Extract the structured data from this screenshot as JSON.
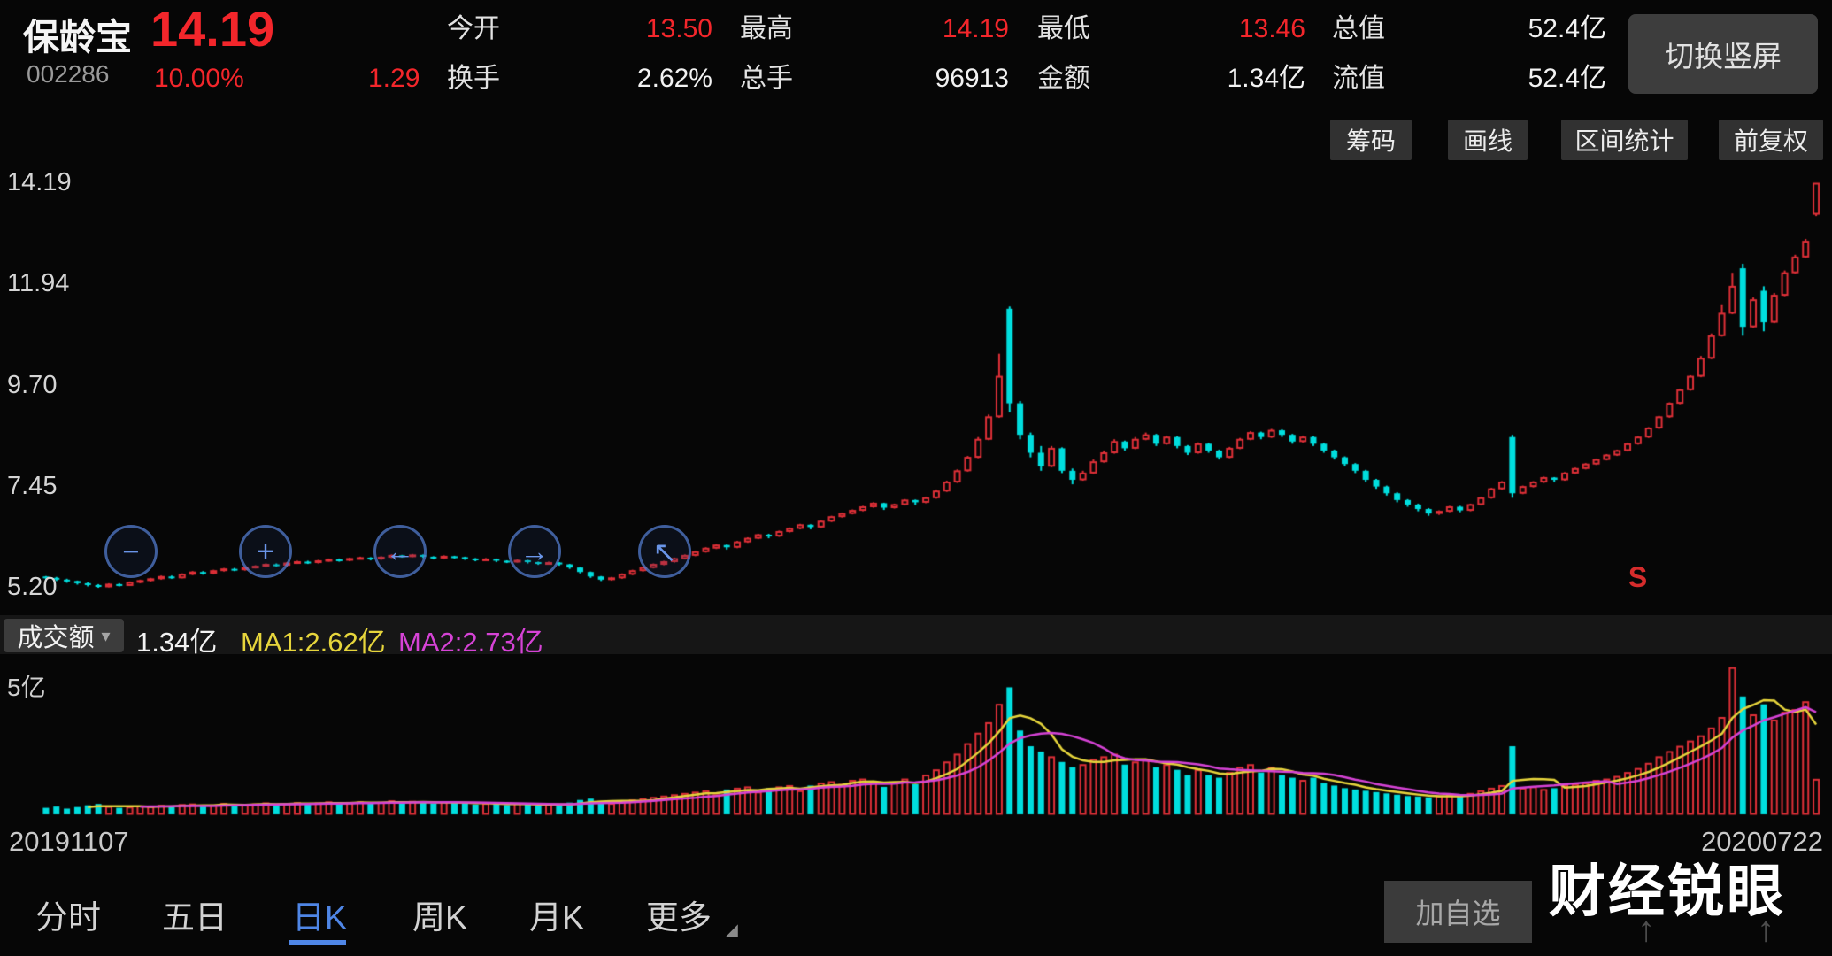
{
  "header": {
    "stock_name": "保龄宝",
    "stock_code": "002286",
    "price": "14.19",
    "change_pct": "10.00%",
    "change_amt": "1.29",
    "stats": [
      {
        "label": "今开",
        "value": "13.50",
        "color": "#f3262b"
      },
      {
        "label": "换手",
        "value": "2.62%",
        "color": "#f2f2f2"
      },
      {
        "label": "最高",
        "value": "14.19",
        "color": "#f3262b"
      },
      {
        "label": "总手",
        "value": "96913",
        "color": "#f2f2f2"
      },
      {
        "label": "最低",
        "value": "13.46",
        "color": "#f3262b"
      },
      {
        "label": "金额",
        "value": "1.34亿",
        "color": "#f2f2f2"
      },
      {
        "label": "总值",
        "value": "52.4亿",
        "color": "#f2f2f2"
      },
      {
        "label": "流值",
        "value": "52.4亿",
        "color": "#f2f2f2"
      }
    ],
    "rotate_button": "切换竖屏"
  },
  "toolbar": {
    "buttons": [
      "筹码",
      "画线",
      "区间统计",
      "前复权"
    ]
  },
  "icons": {
    "zoom_out": "−",
    "zoom_in": "+",
    "pan_left": "←",
    "pan_right": "→",
    "crosshair": "↖",
    "dropdown_caret": "▾",
    "more_caret": "◢",
    "scroll_up": "↑"
  },
  "volume_header": {
    "indicator_label": "成交额",
    "current_value": "1.34亿",
    "ma1": "MA1:2.62亿",
    "ma2": "MA2:2.73亿"
  },
  "tabs": [
    {
      "label": "分时",
      "active": false
    },
    {
      "label": "五日",
      "active": false
    },
    {
      "label": "日K",
      "active": true
    },
    {
      "label": "周K",
      "active": false
    },
    {
      "label": "月K",
      "active": false
    },
    {
      "label": "更多",
      "active": false
    }
  ],
  "add_watchlist_label": "加自选",
  "watermark": "财经锐眼",
  "chart_data": {
    "type": "candlestick_with_volume",
    "title": "保龄宝 002286 日K",
    "price_axis_ticks": [
      "14.19",
      "11.94",
      "9.70",
      "7.45",
      "5.20"
    ],
    "price_range": [
      5.2,
      14.19
    ],
    "x_axis": {
      "start_label": "20191107",
      "end_label": "20200722"
    },
    "volume_axis_tick_label": "5亿",
    "volume_axis_tick_value": 5,
    "volume_unit": "亿",
    "up_color": "#e03038",
    "down_color": "#00dede",
    "ma1_period": 5,
    "ma2_period": 10,
    "ma1_color": "#e6d53c",
    "ma2_color": "#d643d6",
    "sell_marker": {
      "label": "S",
      "index": 152
    },
    "candles": [
      [
        5.45,
        5.46,
        5.38,
        5.42
      ],
      [
        5.42,
        5.44,
        5.35,
        5.38
      ],
      [
        5.38,
        5.4,
        5.31,
        5.35
      ],
      [
        5.35,
        5.36,
        5.27,
        5.3
      ],
      [
        5.3,
        5.32,
        5.23,
        5.26
      ],
      [
        5.26,
        5.28,
        5.2,
        5.22
      ],
      [
        5.22,
        5.3,
        5.21,
        5.28
      ],
      [
        5.28,
        5.3,
        5.23,
        5.25
      ],
      [
        5.25,
        5.34,
        5.24,
        5.32
      ],
      [
        5.32,
        5.38,
        5.3,
        5.36
      ],
      [
        5.36,
        5.42,
        5.34,
        5.4
      ],
      [
        5.4,
        5.47,
        5.38,
        5.45
      ],
      [
        5.45,
        5.47,
        5.4,
        5.42
      ],
      [
        5.42,
        5.52,
        5.41,
        5.5
      ],
      [
        5.5,
        5.57,
        5.48,
        5.55
      ],
      [
        5.55,
        5.57,
        5.49,
        5.52
      ],
      [
        5.52,
        5.6,
        5.5,
        5.58
      ],
      [
        5.58,
        5.64,
        5.56,
        5.62
      ],
      [
        5.62,
        5.64,
        5.57,
        5.6
      ],
      [
        5.6,
        5.67,
        5.58,
        5.65
      ],
      [
        5.65,
        5.7,
        5.63,
        5.68
      ],
      [
        5.68,
        5.74,
        5.66,
        5.72
      ],
      [
        5.72,
        5.74,
        5.67,
        5.7
      ],
      [
        5.7,
        5.77,
        5.68,
        5.75
      ],
      [
        5.75,
        5.8,
        5.73,
        5.78
      ],
      [
        5.78,
        5.8,
        5.73,
        5.76
      ],
      [
        5.76,
        5.82,
        5.74,
        5.8
      ],
      [
        5.8,
        5.85,
        5.78,
        5.83
      ],
      [
        5.83,
        5.85,
        5.78,
        5.81
      ],
      [
        5.81,
        5.87,
        5.79,
        5.85
      ],
      [
        5.85,
        5.89,
        5.83,
        5.87
      ],
      [
        5.87,
        5.88,
        5.81,
        5.84
      ],
      [
        5.84,
        5.9,
        5.82,
        5.88
      ],
      [
        5.88,
        5.94,
        5.86,
        5.92
      ],
      [
        5.92,
        5.93,
        5.87,
        5.9
      ],
      [
        5.9,
        5.95,
        5.88,
        5.93
      ],
      [
        5.93,
        5.94,
        5.86,
        5.89
      ],
      [
        5.89,
        5.9,
        5.83,
        5.86
      ],
      [
        5.86,
        5.92,
        5.84,
        5.9
      ],
      [
        5.9,
        5.91,
        5.85,
        5.88
      ],
      [
        5.88,
        5.89,
        5.82,
        5.85
      ],
      [
        5.85,
        5.86,
        5.79,
        5.82
      ],
      [
        5.82,
        5.86,
        5.8,
        5.84
      ],
      [
        5.84,
        5.85,
        5.77,
        5.8
      ],
      [
        5.8,
        5.81,
        5.75,
        5.78
      ],
      [
        5.78,
        5.83,
        5.76,
        5.81
      ],
      [
        5.81,
        5.82,
        5.74,
        5.77
      ],
      [
        5.77,
        5.78,
        5.71,
        5.74
      ],
      [
        5.74,
        5.78,
        5.72,
        5.76
      ],
      [
        5.76,
        5.77,
        5.69,
        5.72
      ],
      [
        5.72,
        5.73,
        5.62,
        5.65
      ],
      [
        5.65,
        5.66,
        5.52,
        5.55
      ],
      [
        5.55,
        5.56,
        5.42,
        5.45
      ],
      [
        5.45,
        5.46,
        5.35,
        5.38
      ],
      [
        5.38,
        5.44,
        5.36,
        5.42
      ],
      [
        5.42,
        5.52,
        5.4,
        5.5
      ],
      [
        5.5,
        5.6,
        5.48,
        5.58
      ],
      [
        5.58,
        5.67,
        5.56,
        5.65
      ],
      [
        5.65,
        5.74,
        5.63,
        5.72
      ],
      [
        5.72,
        5.8,
        5.7,
        5.78
      ],
      [
        5.78,
        5.87,
        5.76,
        5.85
      ],
      [
        5.85,
        5.94,
        5.83,
        5.92
      ],
      [
        5.92,
        6.02,
        5.9,
        6.0
      ],
      [
        6.0,
        6.1,
        5.98,
        6.08
      ],
      [
        6.08,
        6.17,
        6.06,
        6.15
      ],
      [
        6.15,
        6.16,
        6.05,
        6.1
      ],
      [
        6.1,
        6.24,
        6.08,
        6.22
      ],
      [
        6.22,
        6.32,
        6.2,
        6.3
      ],
      [
        6.3,
        6.4,
        6.28,
        6.38
      ],
      [
        6.38,
        6.4,
        6.3,
        6.35
      ],
      [
        6.35,
        6.47,
        6.33,
        6.45
      ],
      [
        6.45,
        6.54,
        6.43,
        6.52
      ],
      [
        6.52,
        6.62,
        6.5,
        6.6
      ],
      [
        6.6,
        6.61,
        6.5,
        6.55
      ],
      [
        6.55,
        6.7,
        6.53,
        6.68
      ],
      [
        6.68,
        6.8,
        6.66,
        6.78
      ],
      [
        6.78,
        6.87,
        6.76,
        6.85
      ],
      [
        6.85,
        6.94,
        6.83,
        6.92
      ],
      [
        6.92,
        7.02,
        6.9,
        7.0
      ],
      [
        7.0,
        7.1,
        6.98,
        7.08
      ],
      [
        7.08,
        7.09,
        6.93,
        6.98
      ],
      [
        6.98,
        7.07,
        6.96,
        7.05
      ],
      [
        7.05,
        7.17,
        7.03,
        7.15
      ],
      [
        7.15,
        7.16,
        7.04,
        7.1
      ],
      [
        7.1,
        7.22,
        7.08,
        7.2
      ],
      [
        7.2,
        7.38,
        7.18,
        7.35
      ],
      [
        7.35,
        7.58,
        7.33,
        7.55
      ],
      [
        7.55,
        7.83,
        7.53,
        7.8
      ],
      [
        7.8,
        8.13,
        7.78,
        8.1
      ],
      [
        8.1,
        8.55,
        8.08,
        8.5
      ],
      [
        8.5,
        9.05,
        8.48,
        9.0
      ],
      [
        9.0,
        10.4,
        8.98,
        9.9
      ],
      [
        11.4,
        11.45,
        9.1,
        9.3
      ],
      [
        9.3,
        9.35,
        8.5,
        8.6
      ],
      [
        8.6,
        8.65,
        8.1,
        8.2
      ],
      [
        8.2,
        8.35,
        7.8,
        7.9
      ],
      [
        7.9,
        8.35,
        7.88,
        8.3
      ],
      [
        8.3,
        8.32,
        7.75,
        7.8
      ],
      [
        7.8,
        7.85,
        7.5,
        7.6
      ],
      [
        7.6,
        7.8,
        7.58,
        7.75
      ],
      [
        7.75,
        8.05,
        7.73,
        8.0
      ],
      [
        8.0,
        8.25,
        7.98,
        8.2
      ],
      [
        8.2,
        8.5,
        8.18,
        8.45
      ],
      [
        8.45,
        8.47,
        8.25,
        8.3
      ],
      [
        8.3,
        8.55,
        8.28,
        8.5
      ],
      [
        8.5,
        8.65,
        8.48,
        8.6
      ],
      [
        8.6,
        8.62,
        8.35,
        8.4
      ],
      [
        8.4,
        8.58,
        8.38,
        8.55
      ],
      [
        8.55,
        8.57,
        8.3,
        8.35
      ],
      [
        8.35,
        8.37,
        8.15,
        8.2
      ],
      [
        8.2,
        8.43,
        8.18,
        8.4
      ],
      [
        8.4,
        8.42,
        8.2,
        8.25
      ],
      [
        8.25,
        8.27,
        8.05,
        8.1
      ],
      [
        8.1,
        8.33,
        8.08,
        8.3
      ],
      [
        8.3,
        8.53,
        8.28,
        8.5
      ],
      [
        8.5,
        8.68,
        8.48,
        8.65
      ],
      [
        8.65,
        8.67,
        8.5,
        8.55
      ],
      [
        8.55,
        8.73,
        8.53,
        8.7
      ],
      [
        8.7,
        8.72,
        8.55,
        8.6
      ],
      [
        8.6,
        8.62,
        8.4,
        8.45
      ],
      [
        8.45,
        8.58,
        8.43,
        8.55
      ],
      [
        8.55,
        8.57,
        8.35,
        8.4
      ],
      [
        8.4,
        8.42,
        8.2,
        8.25
      ],
      [
        8.25,
        8.27,
        8.05,
        8.1
      ],
      [
        8.1,
        8.12,
        7.9,
        7.95
      ],
      [
        7.95,
        7.97,
        7.75,
        7.8
      ],
      [
        7.8,
        7.82,
        7.55,
        7.6
      ],
      [
        7.6,
        7.62,
        7.4,
        7.45
      ],
      [
        7.45,
        7.47,
        7.25,
        7.3
      ],
      [
        7.3,
        7.32,
        7.1,
        7.15
      ],
      [
        7.15,
        7.17,
        7.0,
        7.05
      ],
      [
        7.05,
        7.07,
        6.9,
        6.95
      ],
      [
        6.95,
        6.97,
        6.8,
        6.85
      ],
      [
        6.85,
        6.92,
        6.82,
        6.9
      ],
      [
        6.9,
        7.02,
        6.88,
        7.0
      ],
      [
        7.0,
        7.02,
        6.88,
        6.92
      ],
      [
        6.92,
        7.07,
        6.9,
        7.05
      ],
      [
        7.05,
        7.22,
        7.03,
        7.2
      ],
      [
        7.2,
        7.42,
        7.18,
        7.4
      ],
      [
        7.4,
        7.57,
        7.38,
        7.55
      ],
      [
        8.55,
        8.6,
        7.2,
        7.3
      ],
      [
        7.3,
        7.47,
        7.28,
        7.45
      ],
      [
        7.45,
        7.57,
        7.43,
        7.55
      ],
      [
        7.55,
        7.67,
        7.53,
        7.65
      ],
      [
        7.65,
        7.66,
        7.55,
        7.6
      ],
      [
        7.6,
        7.77,
        7.58,
        7.75
      ],
      [
        7.75,
        7.87,
        7.73,
        7.85
      ],
      [
        7.85,
        7.97,
        7.83,
        7.95
      ],
      [
        7.95,
        8.07,
        7.93,
        8.05
      ],
      [
        8.05,
        8.17,
        8.03,
        8.15
      ],
      [
        8.15,
        8.27,
        8.13,
        8.25
      ],
      [
        8.25,
        8.42,
        8.23,
        8.4
      ],
      [
        8.4,
        8.57,
        8.38,
        8.55
      ],
      [
        8.55,
        8.77,
        8.53,
        8.75
      ],
      [
        8.75,
        9.02,
        8.73,
        9.0
      ],
      [
        9.0,
        9.32,
        8.98,
        9.3
      ],
      [
        9.3,
        9.62,
        9.28,
        9.6
      ],
      [
        9.6,
        9.92,
        9.58,
        9.9
      ],
      [
        9.9,
        10.35,
        9.88,
        10.3
      ],
      [
        10.3,
        10.85,
        10.28,
        10.8
      ],
      [
        10.8,
        11.5,
        10.78,
        11.3
      ],
      [
        11.3,
        12.2,
        11.28,
        11.9
      ],
      [
        12.3,
        12.4,
        10.8,
        11.0
      ],
      [
        11.0,
        11.65,
        10.98,
        11.6
      ],
      [
        11.8,
        11.9,
        10.9,
        11.1
      ],
      [
        11.1,
        11.75,
        11.08,
        11.7
      ],
      [
        11.7,
        12.25,
        11.68,
        12.2
      ],
      [
        12.2,
        12.6,
        12.18,
        12.55
      ],
      [
        12.55,
        12.95,
        12.53,
        12.9
      ],
      [
        13.5,
        14.19,
        13.46,
        14.19
      ]
    ],
    "volumes": [
      0.25,
      0.3,
      0.22,
      0.28,
      0.35,
      0.4,
      0.3,
      0.25,
      0.28,
      0.32,
      0.3,
      0.35,
      0.28,
      0.38,
      0.4,
      0.32,
      0.36,
      0.42,
      0.35,
      0.38,
      0.4,
      0.44,
      0.36,
      0.42,
      0.45,
      0.38,
      0.44,
      0.48,
      0.4,
      0.46,
      0.48,
      0.42,
      0.46,
      0.52,
      0.44,
      0.5,
      0.46,
      0.42,
      0.48,
      0.44,
      0.42,
      0.38,
      0.42,
      0.4,
      0.36,
      0.42,
      0.38,
      0.34,
      0.38,
      0.36,
      0.45,
      0.55,
      0.6,
      0.5,
      0.42,
      0.5,
      0.55,
      0.6,
      0.65,
      0.7,
      0.75,
      0.8,
      0.85,
      0.9,
      0.75,
      0.95,
      1.0,
      1.05,
      0.85,
      1.0,
      1.05,
      1.1,
      0.9,
      1.1,
      1.2,
      1.25,
      1.15,
      1.3,
      1.35,
      1.25,
      1.05,
      1.2,
      1.35,
      1.15,
      1.5,
      1.7,
      2.0,
      2.3,
      2.7,
      3.1,
      3.5,
      4.2,
      4.85,
      3.2,
      2.6,
      2.4,
      2.2,
      2.0,
      1.8,
      1.9,
      2.1,
      2.2,
      2.3,
      1.9,
      2.0,
      2.1,
      1.8,
      1.9,
      1.7,
      1.5,
      1.7,
      1.5,
      1.4,
      1.6,
      1.8,
      1.9,
      1.6,
      1.8,
      1.5,
      1.4,
      1.3,
      1.4,
      1.2,
      1.1,
      1.0,
      0.95,
      0.9,
      0.85,
      0.8,
      0.75,
      0.7,
      0.68,
      0.65,
      0.7,
      0.75,
      0.68,
      0.8,
      0.9,
      1.0,
      1.1,
      2.6,
      1.0,
      1.05,
      0.95,
      1.0,
      1.1,
      1.15,
      1.2,
      1.3,
      1.35,
      1.45,
      1.6,
      1.75,
      1.95,
      2.2,
      2.4,
      2.6,
      2.8,
      3.0,
      3.3,
      3.7,
      5.6,
      4.5,
      3.8,
      4.2,
      3.6,
      3.9,
      4.0,
      4.3,
      1.34
    ]
  }
}
